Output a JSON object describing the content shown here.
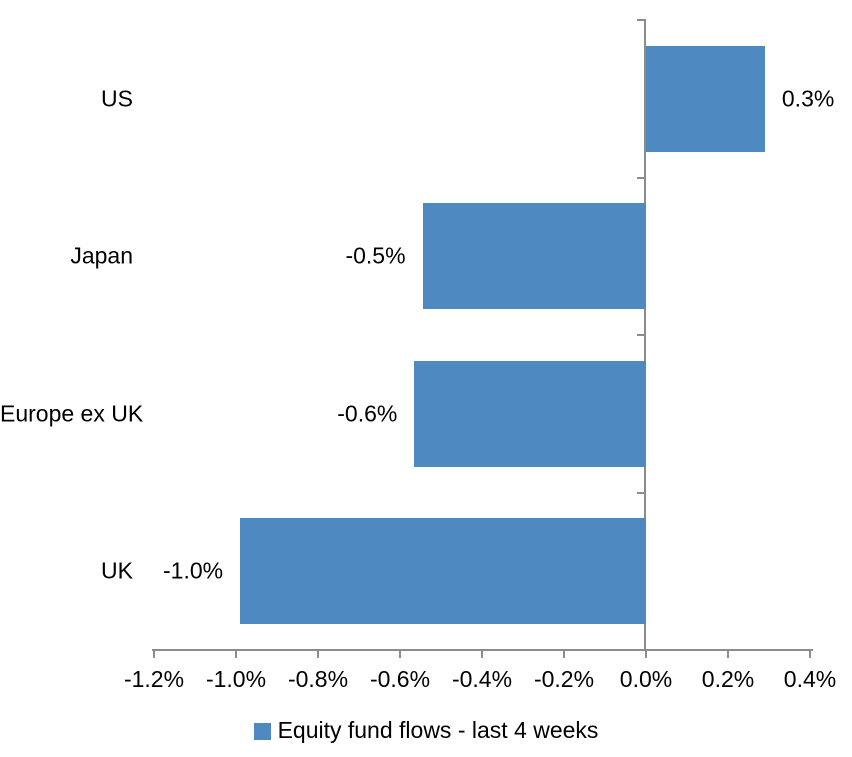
{
  "chart_data": {
    "type": "bar",
    "orientation": "horizontal",
    "title": "",
    "xlabel": "",
    "ylabel": "",
    "categories": [
      "US",
      "Japan",
      "Europe ex UK",
      "UK"
    ],
    "values": [
      0.29,
      -0.545,
      -0.565,
      -0.99
    ],
    "data_labels": [
      "0.3%",
      "-0.5%",
      "-0.6%",
      "-1.0%"
    ],
    "legend": "Equity fund flows - last 4 weeks",
    "legend_position": "bottom",
    "grid": false,
    "x_axis": {
      "min": -1.2,
      "max": 0.4,
      "step": 0.2,
      "tick_labels": [
        "-1.2%",
        "-1.0%",
        "-0.8%",
        "-0.6%",
        "-0.4%",
        "-0.2%",
        "0.0%",
        "0.2%",
        "0.4%"
      ]
    },
    "colors": {
      "bar": "#4E8AC1",
      "axis": "#8C8C8C",
      "text": "#000000",
      "background": "#FFFFFF"
    }
  }
}
